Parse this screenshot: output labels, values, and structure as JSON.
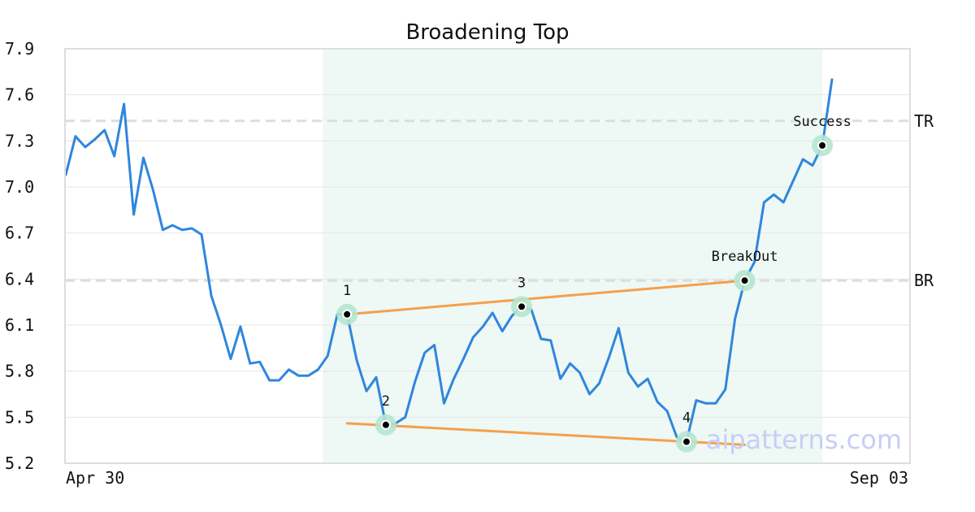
{
  "chart_data": {
    "type": "line",
    "title": "Broadening Top",
    "x_start_label": "Apr 30",
    "x_end_label": "Sep 03",
    "yticks": [
      "7.9",
      "7.6",
      "7.3",
      "7.0",
      "6.7",
      "6.4",
      "6.1",
      "5.8",
      "5.5",
      "5.2"
    ],
    "ylim": [
      5.2,
      7.9
    ],
    "grid": true,
    "watermark": "aipatterns.com",
    "colors": {
      "price": "#2f86dd",
      "trend": "#f5a04a",
      "highlight": "#e3f3ec",
      "marker_ring": "#b5e6cf",
      "reference": "#dddddd"
    },
    "series": [
      {
        "values": [
          7.08,
          7.33,
          7.26,
          7.31,
          7.37,
          7.2,
          7.54,
          6.82,
          7.19,
          6.98,
          6.72,
          6.75,
          6.72,
          6.73,
          6.69,
          6.29,
          6.1,
          5.88,
          6.09,
          5.85,
          5.86,
          5.74,
          5.74,
          5.81,
          5.77,
          5.77,
          5.81,
          5.9,
          6.17,
          6.17,
          5.87,
          5.67,
          5.76,
          5.45,
          5.46,
          5.5,
          5.73,
          5.92,
          5.97,
          5.59,
          5.75,
          5.88,
          6.02,
          6.09,
          6.18,
          6.06,
          6.16,
          6.22,
          6.2,
          6.01,
          6.0,
          5.75,
          5.85,
          5.79,
          5.65,
          5.72,
          5.89,
          6.08,
          5.79,
          5.7,
          5.75,
          5.6,
          5.54,
          5.37,
          5.34,
          5.61,
          5.59,
          5.59,
          5.68,
          6.14,
          6.39,
          6.51,
          6.9,
          6.95,
          6.9,
          7.04,
          7.18,
          7.14,
          7.27,
          7.7
        ]
      }
    ],
    "highlight_range": {
      "from_index": 27,
      "to_index": 78
    },
    "trend_lines": [
      {
        "from": {
          "index": 29,
          "value": 6.17
        },
        "to": {
          "index": 70,
          "value": 6.39
        }
      },
      {
        "from": {
          "index": 29,
          "value": 5.46
        },
        "to": {
          "index": 70,
          "value": 5.32
        }
      }
    ],
    "markers": [
      {
        "label": "1",
        "index": 29,
        "value": 6.17
      },
      {
        "label": "2",
        "index": 33,
        "value": 5.45
      },
      {
        "label": "3",
        "index": 47,
        "value": 6.22
      },
      {
        "label": "4",
        "index": 64,
        "value": 5.34
      },
      {
        "label": "BreakOut",
        "index": 70,
        "value": 6.39
      },
      {
        "label": "Success",
        "index": 78,
        "value": 7.27
      }
    ],
    "reference_lines": [
      {
        "label": "TR",
        "value": 7.43
      },
      {
        "label": "BR",
        "value": 6.39
      }
    ]
  }
}
